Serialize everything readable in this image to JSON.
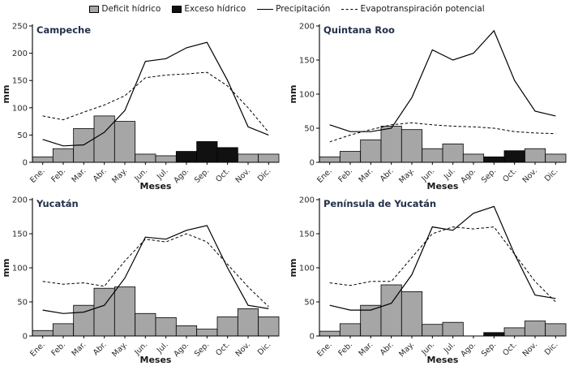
{
  "legend": {
    "items": [
      {
        "label": "Deficit hídrico",
        "type": "gray-box"
      },
      {
        "label": "Exceso hídrico",
        "type": "black-box"
      },
      {
        "label": "Precipitación",
        "type": "solid-line"
      },
      {
        "label": "Evapotranspiración potencial",
        "type": "dashed-line"
      }
    ]
  },
  "colors": {
    "deficit": "#a6a6a6",
    "exceso": "#111111",
    "line": "#000000",
    "axis": "#000000",
    "title": "#22304a",
    "tick_text": "#2a2a2a"
  },
  "chart_data": [
    {
      "type": "bar",
      "title": "Campeche",
      "xlabel": "Meses",
      "ylabel": "mm",
      "ylim": [
        0,
        250
      ],
      "ytick_step": 50,
      "categories": [
        "Ene.",
        "Feb.",
        "Mar.",
        "Abr.",
        "May.",
        "Jun.",
        "Jul.",
        "Ago.",
        "Sep.",
        "Oct.",
        "Nov.",
        "Dic."
      ],
      "series": [
        {
          "name": "Deficit hídrico",
          "kind": "bar",
          "color_key": "deficit",
          "values": [
            10,
            25,
            62,
            85,
            75,
            15,
            12,
            0,
            0,
            0,
            15,
            15
          ]
        },
        {
          "name": "Exceso hídrico",
          "kind": "bar",
          "color_key": "exceso",
          "values": [
            0,
            0,
            0,
            0,
            0,
            0,
            0,
            20,
            38,
            27,
            0,
            0
          ]
        },
        {
          "name": "Precipitación",
          "kind": "line",
          "values": [
            42,
            30,
            32,
            55,
            95,
            185,
            190,
            210,
            220,
            150,
            65,
            50
          ]
        },
        {
          "name": "Evapotranspiración potencial",
          "kind": "dashed-line",
          "values": [
            85,
            78,
            92,
            105,
            122,
            155,
            160,
            162,
            165,
            140,
            100,
            55
          ]
        }
      ]
    },
    {
      "type": "bar",
      "title": "Quintana Roo",
      "xlabel": "Meses",
      "ylabel": "mm",
      "ylim": [
        0,
        200
      ],
      "ytick_step": 50,
      "categories": [
        "Ene.",
        "Feb.",
        "Mar.",
        "Abr.",
        "May.",
        "Jun.",
        "Jul.",
        "Ago.",
        "Sep.",
        "Oct.",
        "Nov.",
        "Dic."
      ],
      "series": [
        {
          "name": "Deficit hídrico",
          "kind": "bar",
          "color_key": "deficit",
          "values": [
            8,
            16,
            33,
            53,
            48,
            20,
            27,
            12,
            0,
            0,
            20,
            12
          ]
        },
        {
          "name": "Exceso hídrico",
          "kind": "bar",
          "color_key": "exceso",
          "values": [
            0,
            0,
            0,
            0,
            0,
            0,
            0,
            0,
            8,
            17,
            0,
            0
          ]
        },
        {
          "name": "Precipitación",
          "kind": "line",
          "values": [
            55,
            45,
            45,
            50,
            95,
            165,
            150,
            160,
            193,
            120,
            75,
            68
          ]
        },
        {
          "name": "Evapotranspiración potencial",
          "kind": "dashed-line",
          "values": [
            30,
            40,
            48,
            55,
            58,
            55,
            53,
            52,
            50,
            45,
            43,
            42
          ]
        }
      ]
    },
    {
      "type": "bar",
      "title": "Yucatán",
      "xlabel": "Meses",
      "ylabel": "mm",
      "ylim": [
        0,
        200
      ],
      "ytick_step": 50,
      "categories": [
        "Ene.",
        "Feb.",
        "Mar.",
        "Abr.",
        "May.",
        "Jun.",
        "Jul.",
        "Ago.",
        "Sep.",
        "Oct.",
        "Nov.",
        "Dic."
      ],
      "series": [
        {
          "name": "Deficit hídrico",
          "kind": "bar",
          "color_key": "deficit",
          "values": [
            8,
            18,
            45,
            70,
            72,
            33,
            27,
            15,
            10,
            28,
            40,
            28
          ]
        },
        {
          "name": "Exceso hídrico",
          "kind": "bar",
          "color_key": "exceso",
          "values": [
            0,
            0,
            0,
            0,
            0,
            0,
            0,
            0,
            0,
            0,
            0,
            0
          ]
        },
        {
          "name": "Precipitación",
          "kind": "line",
          "values": [
            38,
            33,
            35,
            45,
            85,
            145,
            142,
            155,
            162,
            100,
            45,
            40
          ]
        },
        {
          "name": "Evapotranspiración potencial",
          "kind": "dashed-line",
          "values": [
            80,
            76,
            78,
            73,
            110,
            142,
            138,
            150,
            138,
            105,
            72,
            43
          ]
        }
      ]
    },
    {
      "type": "bar",
      "title": "Península de Yucatán",
      "xlabel": "Meses",
      "ylabel": "mm",
      "ylim": [
        0,
        200
      ],
      "ytick_step": 50,
      "categories": [
        "Ene.",
        "Feb.",
        "Mar.",
        "Abr.",
        "May.",
        "Jun.",
        "Jul.",
        "Ago.",
        "Sep.",
        "Oct.",
        "Nov.",
        "Dic."
      ],
      "series": [
        {
          "name": "Deficit hídrico",
          "kind": "bar",
          "color_key": "deficit",
          "values": [
            7,
            18,
            45,
            75,
            65,
            17,
            20,
            0,
            0,
            12,
            22,
            18
          ]
        },
        {
          "name": "Exceso hídrico",
          "kind": "bar",
          "color_key": "exceso",
          "values": [
            0,
            0,
            0,
            0,
            0,
            0,
            0,
            0,
            5,
            0,
            0,
            0
          ]
        },
        {
          "name": "Precipitación",
          "kind": "line",
          "values": [
            45,
            38,
            38,
            48,
            90,
            160,
            155,
            180,
            190,
            120,
            60,
            55
          ]
        },
        {
          "name": "Evapotranspiración potencial",
          "kind": "dashed-line",
          "values": [
            78,
            74,
            80,
            80,
            115,
            150,
            160,
            157,
            160,
            120,
            80,
            50
          ]
        }
      ]
    }
  ]
}
